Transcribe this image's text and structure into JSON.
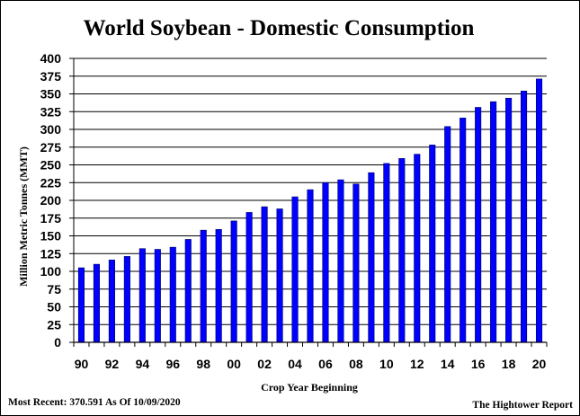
{
  "chart_data": {
    "type": "bar",
    "title": "World Soybean - Domestic Consumption",
    "xlabel": "Crop Year Beginning",
    "ylabel": "Million Metric Tonnes (MMT)",
    "ylim": [
      0,
      400
    ],
    "yticks": [
      "0",
      "25",
      "50",
      "75",
      "100",
      "125",
      "150",
      "175",
      "200",
      "225",
      "250",
      "275",
      "300",
      "325",
      "350",
      "375",
      "400"
    ],
    "categories": [
      "90",
      "91",
      "92",
      "93",
      "94",
      "95",
      "96",
      "97",
      "98",
      "99",
      "00",
      "01",
      "02",
      "03",
      "04",
      "05",
      "06",
      "07",
      "08",
      "09",
      "10",
      "11",
      "12",
      "13",
      "14",
      "15",
      "16",
      "17",
      "18",
      "19",
      "20"
    ],
    "xtick_labels": [
      "90",
      "92",
      "94",
      "96",
      "98",
      "00",
      "02",
      "04",
      "06",
      "08",
      "10",
      "12",
      "14",
      "16",
      "18",
      "20"
    ],
    "values": [
      105,
      110,
      116,
      121,
      132,
      131,
      134,
      145,
      158,
      159,
      171,
      183,
      191,
      188,
      205,
      215,
      225,
      229,
      223,
      239,
      252,
      259,
      265,
      278,
      304,
      316,
      331,
      339,
      344,
      354,
      371
    ],
    "grid": true,
    "legend": "none",
    "bar_color": "#0000ff",
    "bar_edge_color": "#000060"
  },
  "footer": {
    "left": "Most Recent: 370.591 As Of 10/09/2020",
    "right": "The Hightower Report"
  }
}
